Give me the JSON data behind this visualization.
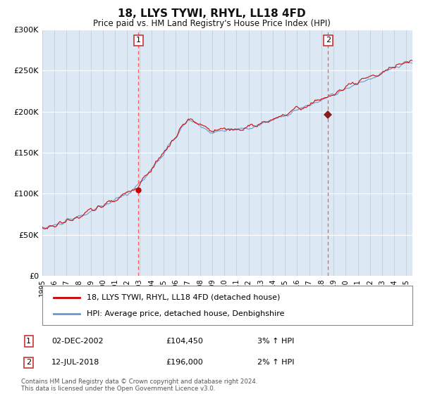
{
  "title": "18, LLYS TYWI, RHYL, LL18 4FD",
  "subtitle": "Price paid vs. HM Land Registry's House Price Index (HPI)",
  "hpi_label": "HPI: Average price, detached house, Denbighshire",
  "property_label": "18, LLYS TYWI, RHYL, LL18 4FD (detached house)",
  "sale1_date": "02-DEC-2002",
  "sale1_price": 104450,
  "sale1_hpi": "3% ↑ HPI",
  "sale2_date": "12-JUL-2018",
  "sale2_price": 196000,
  "sale2_hpi": "2% ↑ HPI",
  "ylim": [
    0,
    300000
  ],
  "start_year": 1995.0,
  "end_year": 2025.5,
  "plot_bg": "#dce9f5",
  "fig_bg": "#ffffff",
  "hpi_color": "#6699cc",
  "price_color": "#cc0000",
  "dashed_color": "#ff5555",
  "sale1_x": 2002.917,
  "sale2_x": 2018.542,
  "footer": "Contains HM Land Registry data © Crown copyright and database right 2024.\nThis data is licensed under the Open Government Licence v3.0."
}
